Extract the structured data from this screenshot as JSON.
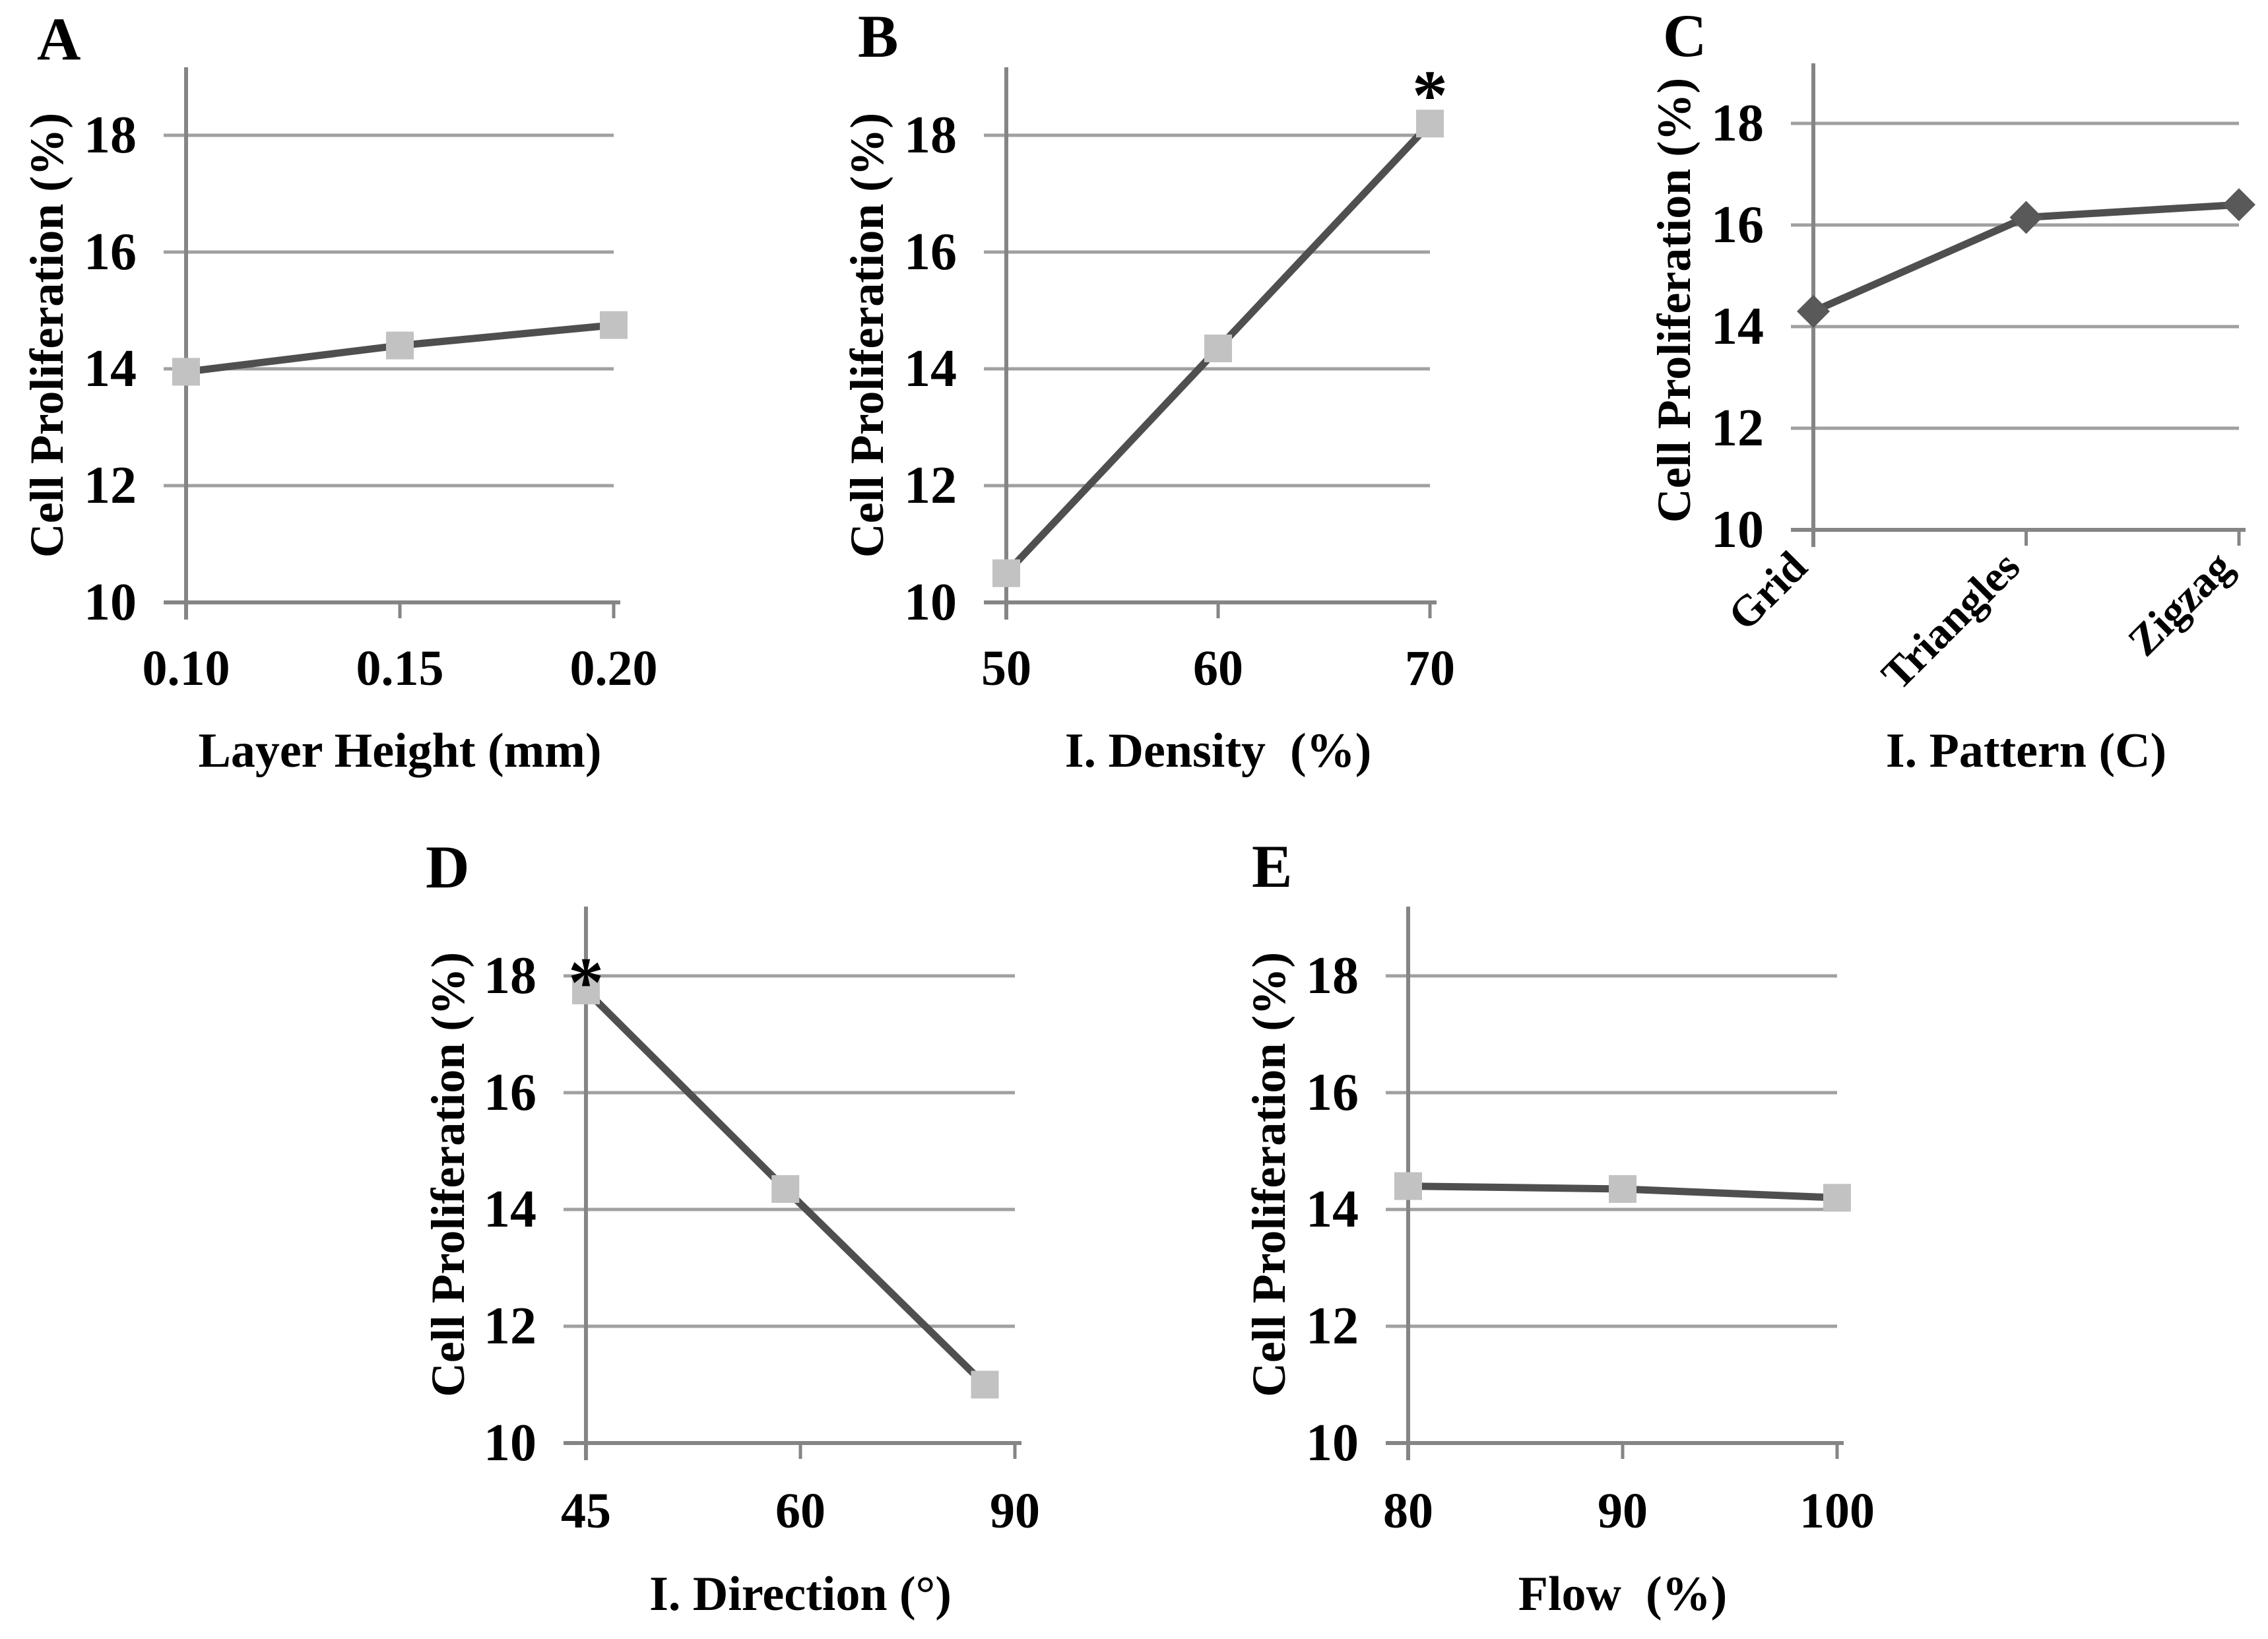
{
  "figure": {
    "background": "#ffffff",
    "shared_ylabel": "Cell Proliferation (%)",
    "colors": {
      "line": "#4f4f4f",
      "square_marker": "#c2c2c2",
      "diamond_marker": "#595959",
      "gridline": "#a0a0a0",
      "axis": "#858585",
      "text": "#000000"
    }
  },
  "chart_data": [
    {
      "panel_label": "A",
      "type": "line",
      "title": "",
      "xlabel": "Layer Height (mm)",
      "ylabel": "Cell Proliferation (%)",
      "categories": [
        "0.10",
        "0.15",
        "0.20"
      ],
      "values": [
        13.95,
        14.4,
        14.75
      ],
      "marker": "square",
      "ylim": [
        10,
        19.2
      ],
      "yticks": [
        10,
        12,
        14,
        16,
        18
      ],
      "grid": true,
      "legend": "none",
      "annotations": []
    },
    {
      "panel_label": "B",
      "type": "line",
      "title": "",
      "xlabel": "I. Density  (%)",
      "ylabel": "Cell Proliferation (%)",
      "categories": [
        "50",
        "60",
        "70"
      ],
      "values": [
        10.5,
        14.35,
        18.2
      ],
      "marker": "square",
      "ylim": [
        10,
        19.2
      ],
      "yticks": [
        10,
        12,
        14,
        16,
        18
      ],
      "grid": true,
      "legend": "none",
      "annotations": [
        {
          "text": "*",
          "point_index": 2
        }
      ]
    },
    {
      "panel_label": "C",
      "type": "line",
      "title": "",
      "xlabel": "I. Pattern (C)",
      "ylabel": "Cell Proliferation (%)",
      "categories": [
        "Grid",
        "Triangles",
        "Zigzag"
      ],
      "values": [
        14.3,
        16.15,
        16.4
      ],
      "marker": "diamond",
      "ylim": [
        10,
        19.2
      ],
      "yticks": [
        10,
        12,
        14,
        16,
        18
      ],
      "grid": true,
      "legend": "none",
      "rotated_tick_labels": true,
      "annotations": []
    },
    {
      "panel_label": "D",
      "type": "line",
      "title": "",
      "xlabel": "I. Direction (°)",
      "ylabel": "Cell Proliferation (%)",
      "categories": [
        "45",
        "60",
        "90"
      ],
      "values": [
        17.75,
        14.35,
        11.0
      ],
      "marker": "square",
      "ylim": [
        10,
        19.2
      ],
      "yticks": [
        10,
        12,
        14,
        16,
        18
      ],
      "grid": true,
      "legend": "none",
      "annotations": [
        {
          "text": "*",
          "point_index": 0
        }
      ]
    },
    {
      "panel_label": "E",
      "type": "line",
      "title": "",
      "xlabel": "Flow  (%)",
      "ylabel": "Cell Proliferation (%)",
      "categories": [
        "80",
        "90",
        "100"
      ],
      "values": [
        14.4,
        14.35,
        14.2
      ],
      "marker": "square",
      "ylim": [
        10,
        19.2
      ],
      "yticks": [
        10,
        12,
        14,
        16,
        18
      ],
      "grid": true,
      "legend": "none",
      "annotations": []
    }
  ]
}
